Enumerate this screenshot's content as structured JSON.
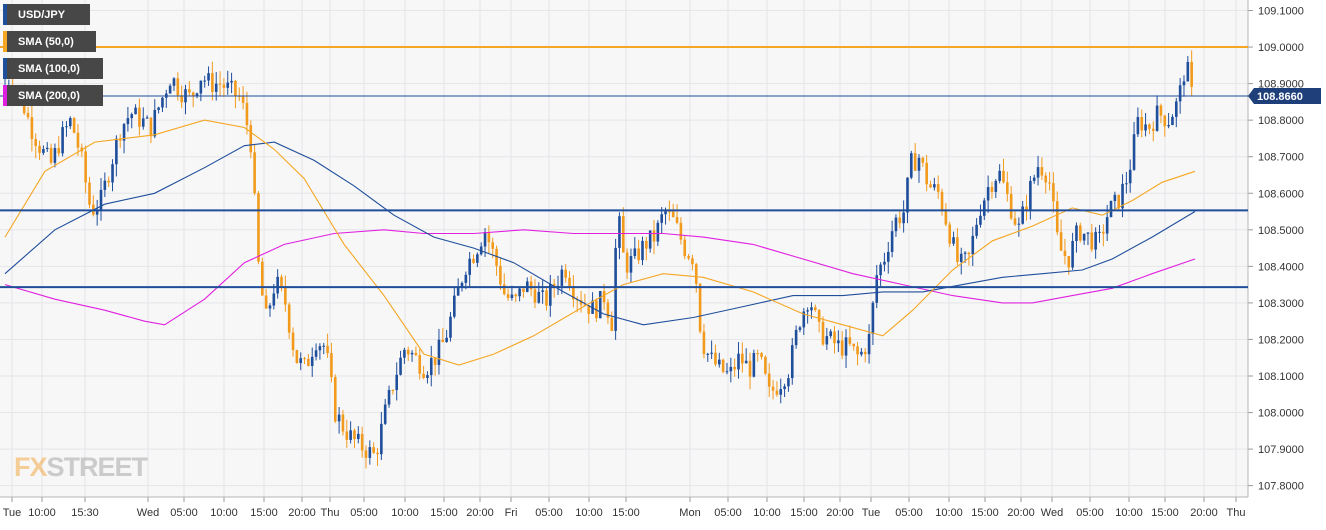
{
  "symbol": "USD/JPY",
  "legend": [
    {
      "label": "USD/JPY",
      "color": "#1f4e9b"
    },
    {
      "label": "SMA (50,0)",
      "color": "#f5a623"
    },
    {
      "label": "SMA (100,0)",
      "color": "#1f4e9b"
    },
    {
      "label": "SMA (200,0)",
      "color": "#e020e0"
    }
  ],
  "watermark": {
    "fx": "FX",
    "street": "STREET"
  },
  "price_label": "108.8660",
  "colors": {
    "bull": "#1f4e9b",
    "bear": "#f29a1c",
    "sma50": "#f5a623",
    "sma100": "#1f4e9b",
    "sma200": "#e020e0",
    "resistance": "#f5a623",
    "support": "#1f4e9b"
  },
  "chart_data": {
    "type": "candlestick",
    "timeframe": "15-minute",
    "ylim": [
      107.75,
      109.12
    ],
    "y_ticks": [
      "109.1000",
      "109.0000",
      "108.9000",
      "108.8000",
      "108.7000",
      "108.6000",
      "108.5000",
      "108.4000",
      "108.3000",
      "108.2000",
      "108.1000",
      "108.0000",
      "107.9000",
      "107.8000"
    ],
    "x_ticks": [
      "Tue",
      "10:00",
      "15:30",
      "Wed",
      "05:00",
      "10:00",
      "15:00",
      "20:00",
      "Thu",
      "05:00",
      "10:00",
      "15:00",
      "20:00",
      "Fri",
      "05:00",
      "10:00",
      "15:00",
      "Mon",
      "05:00",
      "10:00",
      "15:00",
      "20:00",
      "Tue",
      "05:00",
      "10:00",
      "15:00",
      "20:00",
      "Wed",
      "05:00",
      "10:00",
      "15:00",
      "20:00",
      "Thu"
    ],
    "horizontal_lines": [
      {
        "value": 109.0,
        "color": "#f5a623",
        "role": "resistance"
      },
      {
        "value": 108.866,
        "color": "#1f4e9b",
        "role": "last price"
      },
      {
        "value": 108.553,
        "color": "#1f4e9b",
        "role": "support"
      },
      {
        "value": 108.343,
        "color": "#1f4e9b",
        "role": "support"
      }
    ],
    "last_price": 108.866,
    "price_path": [
      [
        0,
        108.88
      ],
      [
        10,
        108.92
      ],
      [
        20,
        108.86
      ],
      [
        30,
        108.78
      ],
      [
        40,
        108.72
      ],
      [
        50,
        108.68
      ],
      [
        60,
        108.75
      ],
      [
        70,
        108.8
      ],
      [
        80,
        108.7
      ],
      [
        90,
        108.55
      ],
      [
        100,
        108.58
      ],
      [
        110,
        108.68
      ],
      [
        120,
        108.78
      ],
      [
        130,
        108.82
      ],
      [
        140,
        108.8
      ],
      [
        150,
        108.78
      ],
      [
        160,
        108.85
      ],
      [
        170,
        108.92
      ],
      [
        180,
        108.88
      ],
      [
        190,
        108.86
      ],
      [
        200,
        108.92
      ],
      [
        210,
        108.9
      ],
      [
        220,
        108.9
      ],
      [
        230,
        108.88
      ],
      [
        240,
        108.86
      ],
      [
        250,
        108.75
      ],
      [
        258,
        108.4
      ],
      [
        265,
        108.25
      ],
      [
        275,
        108.36
      ],
      [
        285,
        108.3
      ],
      [
        295,
        108.15
      ],
      [
        305,
        108.12
      ],
      [
        315,
        108.2
      ],
      [
        325,
        108.18
      ],
      [
        335,
        108.0
      ],
      [
        345,
        107.95
      ],
      [
        355,
        107.92
      ],
      [
        365,
        107.9
      ],
      [
        375,
        107.88
      ],
      [
        385,
        108.0
      ],
      [
        395,
        108.1
      ],
      [
        405,
        108.18
      ],
      [
        415,
        108.15
      ],
      [
        425,
        108.12
      ],
      [
        435,
        108.15
      ],
      [
        445,
        108.2
      ],
      [
        455,
        108.3
      ],
      [
        465,
        108.4
      ],
      [
        475,
        108.44
      ],
      [
        485,
        108.5
      ],
      [
        495,
        108.42
      ],
      [
        505,
        108.32
      ],
      [
        515,
        108.3
      ],
      [
        525,
        108.35
      ],
      [
        535,
        108.33
      ],
      [
        545,
        108.3
      ],
      [
        555,
        108.35
      ],
      [
        565,
        108.4
      ],
      [
        575,
        108.33
      ],
      [
        585,
        108.3
      ],
      [
        595,
        108.28
      ],
      [
        605,
        108.32
      ],
      [
        612,
        108.24
      ],
      [
        618,
        108.55
      ],
      [
        625,
        108.4
      ],
      [
        635,
        108.42
      ],
      [
        645,
        108.46
      ],
      [
        655,
        108.48
      ],
      [
        665,
        108.55
      ],
      [
        675,
        108.52
      ],
      [
        685,
        108.45
      ],
      [
        695,
        108.42
      ],
      [
        702,
        108.2
      ],
      [
        710,
        108.15
      ],
      [
        720,
        108.12
      ],
      [
        730,
        108.1
      ],
      [
        740,
        108.15
      ],
      [
        750,
        108.12
      ],
      [
        760,
        108.15
      ],
      [
        770,
        108.05
      ],
      [
        780,
        108.08
      ],
      [
        790,
        108.12
      ],
      [
        800,
        108.25
      ],
      [
        810,
        108.32
      ],
      [
        820,
        108.22
      ],
      [
        830,
        108.2
      ],
      [
        840,
        108.18
      ],
      [
        850,
        108.18
      ],
      [
        860,
        108.15
      ],
      [
        870,
        108.2
      ],
      [
        878,
        108.38
      ],
      [
        885,
        108.42
      ],
      [
        895,
        108.52
      ],
      [
        905,
        108.55
      ],
      [
        912,
        108.68
      ],
      [
        920,
        108.7
      ],
      [
        930,
        108.62
      ],
      [
        940,
        108.6
      ],
      [
        950,
        108.5
      ],
      [
        960,
        108.4
      ],
      [
        970,
        108.42
      ],
      [
        980,
        108.55
      ],
      [
        990,
        108.62
      ],
      [
        1000,
        108.66
      ],
      [
        1010,
        108.58
      ],
      [
        1020,
        108.5
      ],
      [
        1030,
        108.6
      ],
      [
        1040,
        108.68
      ],
      [
        1050,
        108.65
      ],
      [
        1060,
        108.45
      ],
      [
        1070,
        108.42
      ],
      [
        1080,
        108.5
      ],
      [
        1090,
        108.48
      ],
      [
        1100,
        108.46
      ],
      [
        1110,
        108.55
      ],
      [
        1120,
        108.58
      ],
      [
        1130,
        108.65
      ],
      [
        1140,
        108.8
      ],
      [
        1150,
        108.78
      ],
      [
        1160,
        108.82
      ],
      [
        1170,
        108.8
      ],
      [
        1180,
        108.85
      ],
      [
        1188,
        108.96
      ],
      [
        1193,
        108.87
      ]
    ],
    "sma50": [
      [
        0,
        108.48
      ],
      [
        40,
        108.66
      ],
      [
        90,
        108.74
      ],
      [
        150,
        108.76
      ],
      [
        200,
        108.8
      ],
      [
        240,
        108.78
      ],
      [
        270,
        108.72
      ],
      [
        300,
        108.64
      ],
      [
        340,
        108.46
      ],
      [
        380,
        108.32
      ],
      [
        420,
        108.16
      ],
      [
        455,
        108.13
      ],
      [
        490,
        108.16
      ],
      [
        530,
        108.21
      ],
      [
        580,
        108.29
      ],
      [
        620,
        108.35
      ],
      [
        660,
        108.38
      ],
      [
        700,
        108.37
      ],
      [
        750,
        108.33
      ],
      [
        800,
        108.27
      ],
      [
        840,
        108.24
      ],
      [
        880,
        108.21
      ],
      [
        910,
        108.28
      ],
      [
        950,
        108.39
      ],
      [
        990,
        108.47
      ],
      [
        1030,
        108.51
      ],
      [
        1070,
        108.56
      ],
      [
        1100,
        108.54
      ],
      [
        1130,
        108.58
      ],
      [
        1160,
        108.63
      ],
      [
        1193,
        108.66
      ]
    ],
    "sma100": [
      [
        0,
        108.38
      ],
      [
        50,
        108.5
      ],
      [
        100,
        108.57
      ],
      [
        150,
        108.6
      ],
      [
        200,
        108.67
      ],
      [
        240,
        108.73
      ],
      [
        270,
        108.74
      ],
      [
        310,
        108.69
      ],
      [
        350,
        108.62
      ],
      [
        390,
        108.54
      ],
      [
        430,
        108.48
      ],
      [
        470,
        108.45
      ],
      [
        510,
        108.41
      ],
      [
        560,
        108.33
      ],
      [
        600,
        108.27
      ],
      [
        640,
        108.24
      ],
      [
        690,
        108.26
      ],
      [
        740,
        108.29
      ],
      [
        790,
        108.32
      ],
      [
        840,
        108.32
      ],
      [
        880,
        108.33
      ],
      [
        920,
        108.33
      ],
      [
        960,
        108.35
      ],
      [
        1000,
        108.37
      ],
      [
        1040,
        108.38
      ],
      [
        1080,
        108.39
      ],
      [
        1110,
        108.42
      ],
      [
        1150,
        108.48
      ],
      [
        1193,
        108.55
      ]
    ],
    "sma200": [
      [
        0,
        108.35
      ],
      [
        50,
        108.31
      ],
      [
        100,
        108.28
      ],
      [
        140,
        108.25
      ],
      [
        160,
        108.24
      ],
      [
        200,
        108.31
      ],
      [
        240,
        108.41
      ],
      [
        280,
        108.46
      ],
      [
        330,
        108.49
      ],
      [
        380,
        108.5
      ],
      [
        420,
        108.49
      ],
      [
        470,
        108.49
      ],
      [
        520,
        108.5
      ],
      [
        570,
        108.49
      ],
      [
        620,
        108.49
      ],
      [
        660,
        108.49
      ],
      [
        700,
        108.48
      ],
      [
        750,
        108.46
      ],
      [
        800,
        108.42
      ],
      [
        850,
        108.38
      ],
      [
        900,
        108.35
      ],
      [
        950,
        108.32
      ],
      [
        1000,
        108.3
      ],
      [
        1030,
        108.3
      ],
      [
        1070,
        108.32
      ],
      [
        1110,
        108.34
      ],
      [
        1150,
        108.38
      ],
      [
        1193,
        108.42
      ]
    ]
  }
}
